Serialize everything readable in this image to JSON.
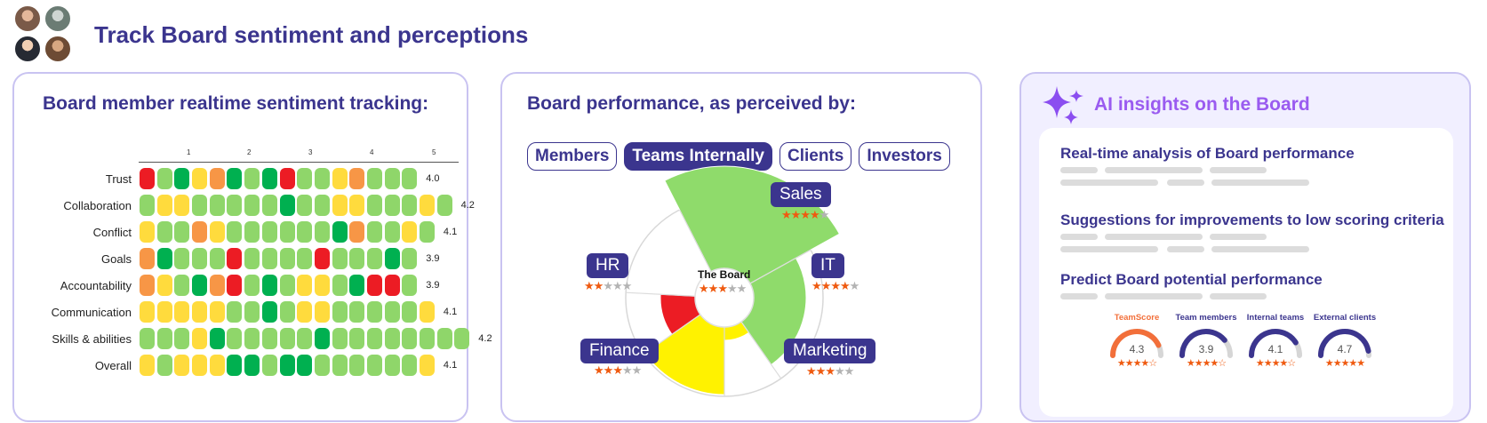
{
  "header": {
    "title": "Track Board sentiment and perceptions"
  },
  "sentiment": {
    "title": "Board member realtime sentiment  tracking:",
    "scale_ticks": [
      "1",
      "2",
      "3",
      "4",
      "5"
    ],
    "colors": {
      "r": "#ec1c24",
      "o": "#f79646",
      "y": "#ffdb3d",
      "g": "#8fd66a",
      "d": "#00b050"
    },
    "rows": [
      {
        "label": "Trust",
        "value": "4.0",
        "cells": "rgdyodgdrggyoggg"
      },
      {
        "label": "Collaboration",
        "value": "4.2",
        "cells": "gyygggggdggyygggyg"
      },
      {
        "label": "Conflict",
        "value": "4.1",
        "cells": "yggoyggggggdoggyg"
      },
      {
        "label": "Goals",
        "value": "3.9",
        "cells": "odgggrggggrgggdg"
      },
      {
        "label": "Accountability",
        "value": "3.9",
        "cells": "oygdorgdgyygdrrg"
      },
      {
        "label": "Communication",
        "value": "4.1",
        "cells": "yyyyyggdgyygggggy"
      },
      {
        "label": "Skills & abilities",
        "value": "4.2",
        "cells": "gggydgggggdgggggggg"
      },
      {
        "label": "Overall",
        "value": "4.1",
        "cells": "ygyyyddgddggggggy"
      }
    ]
  },
  "performance": {
    "title": "Board performance, as perceived by:",
    "tabs": [
      {
        "label": "Members",
        "active": false
      },
      {
        "label": "Teams Internally",
        "active": true
      },
      {
        "label": "Clients",
        "active": false
      },
      {
        "label": "Investors",
        "active": false
      }
    ],
    "center": {
      "label": "The Board",
      "stars": 3
    },
    "segments": [
      {
        "label": "Sales",
        "stars": 4,
        "color": "#8fdb6b"
      },
      {
        "label": "IT",
        "stars": 4,
        "color": "#8fdb6b"
      },
      {
        "label": "Marketing",
        "stars": 3,
        "color": "#fff200"
      },
      {
        "label": "Finance",
        "stars": 3,
        "color": "#fff200"
      },
      {
        "label": "HR",
        "stars": 2,
        "color": "#ec1c24"
      }
    ]
  },
  "ai": {
    "title": "AI insights on the Board",
    "items": [
      "Real-time analysis of Board performance",
      "Suggestions for improvements to low scoring criteria",
      "Predict Board potential performance"
    ],
    "gauges": [
      {
        "label": "TeamScore",
        "value": "4.3",
        "stars": "★★★★☆",
        "color": "#f26f3a"
      },
      {
        "label": "Team members",
        "value": "3.9",
        "stars": "★★★★☆",
        "color": "#3b358e"
      },
      {
        "label": "Internal teams",
        "value": "4.1",
        "stars": "★★★★☆",
        "color": "#3b358e"
      },
      {
        "label": "External clients",
        "value": "4.7",
        "stars": "★★★★★",
        "color": "#3b358e"
      }
    ]
  }
}
